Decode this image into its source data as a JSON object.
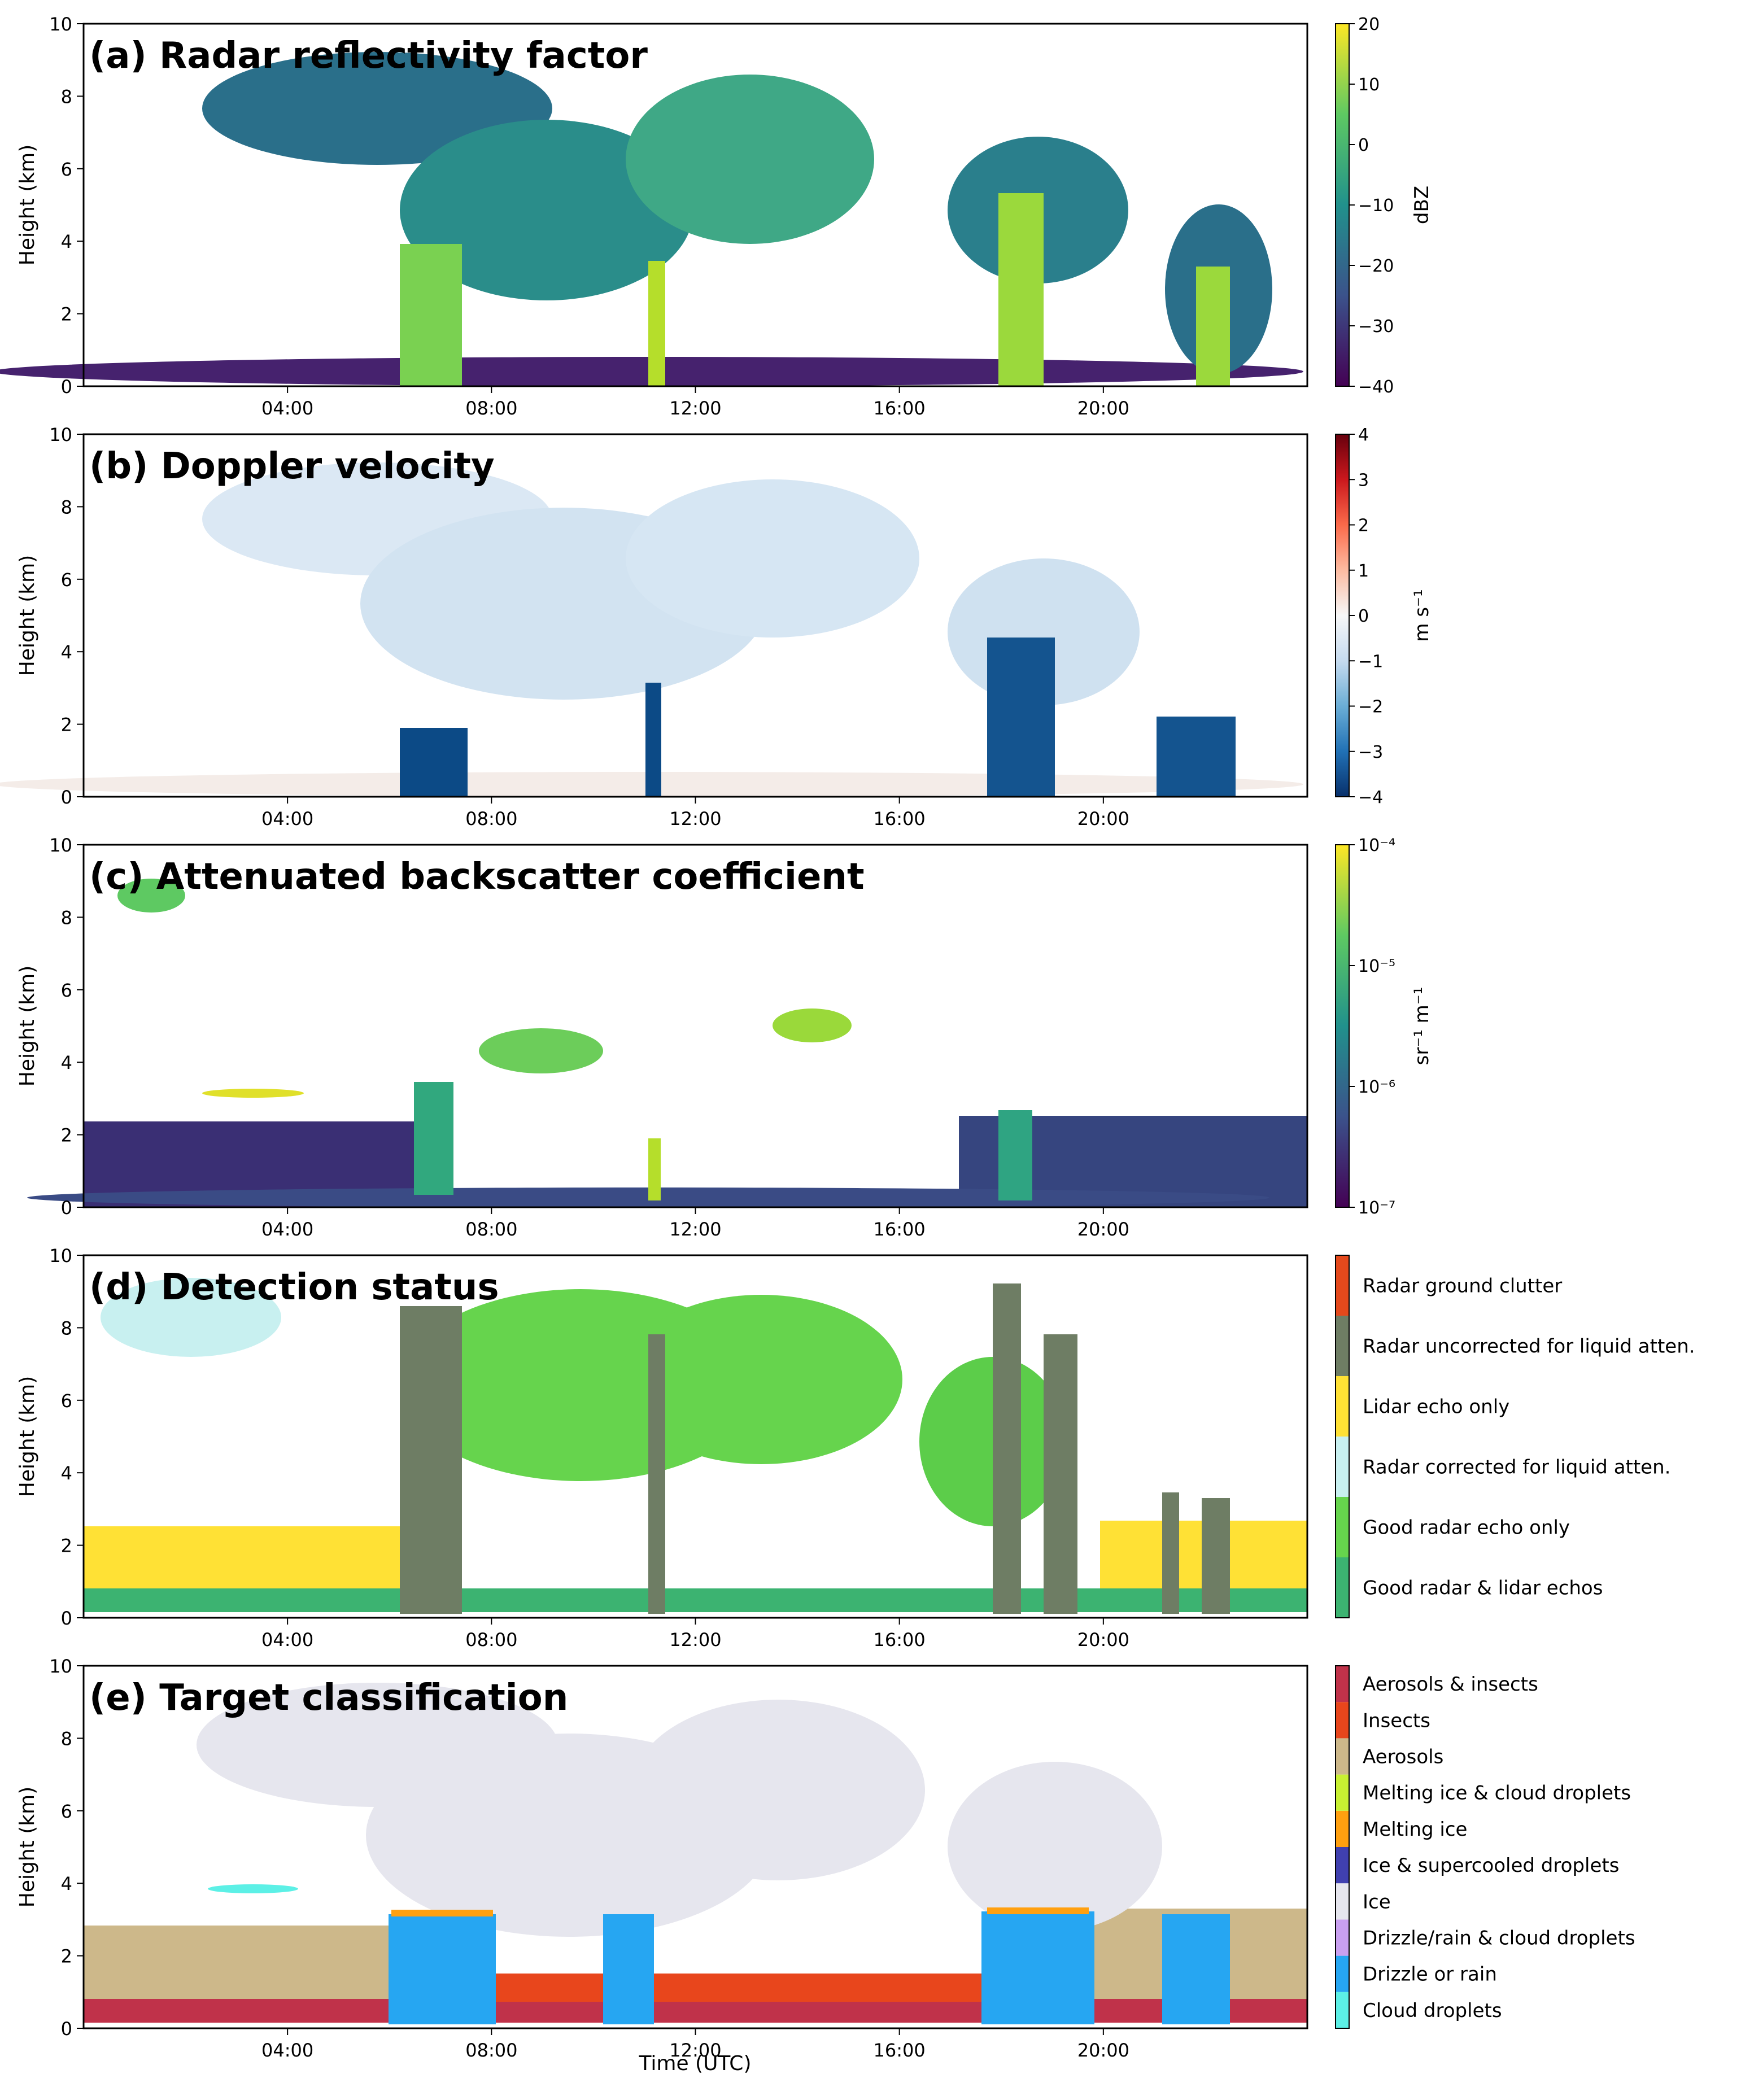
{
  "chart_data": {
    "type": "heatmap",
    "x_axis": {
      "label": "Time (UTC)",
      "range_hours": [
        0,
        24
      ],
      "ticks": [
        {
          "hour": 4,
          "label": "04:00"
        },
        {
          "hour": 8,
          "label": "08:00"
        },
        {
          "hour": 12,
          "label": "12:00"
        },
        {
          "hour": 16,
          "label": "16:00"
        },
        {
          "hour": 20,
          "label": "20:00"
        }
      ]
    },
    "y_axis": {
      "label": "Height (km)",
      "range_km": [
        0,
        10
      ],
      "ticks": [
        {
          "value": 0,
          "label": "0"
        },
        {
          "value": 2,
          "label": "2"
        },
        {
          "value": 4,
          "label": "4"
        },
        {
          "value": 6,
          "label": "6"
        },
        {
          "value": 8,
          "label": "8"
        },
        {
          "value": 10,
          "label": "10"
        }
      ]
    },
    "panels": [
      {
        "id": "a",
        "title": "(a) Radar reflectivity factor",
        "colorbar": {
          "kind": "continuous",
          "label": "dBZ",
          "range": [
            -40,
            20
          ],
          "colors": [
            "#440154",
            "#3b528b",
            "#21918c",
            "#5ec962",
            "#fde725"
          ],
          "ticks": [
            {
              "value": -40,
              "label": "−40"
            },
            {
              "value": -30,
              "label": "−30"
            },
            {
              "value": -20,
              "label": "−20"
            },
            {
              "value": -10,
              "label": "−10"
            },
            {
              "value": 0,
              "label": "0"
            },
            {
              "value": 10,
              "label": "10"
            },
            {
              "value": 20,
              "label": "20"
            }
          ]
        }
      },
      {
        "id": "b",
        "title": "(b) Doppler velocity",
        "colorbar": {
          "kind": "continuous",
          "label": "m s⁻¹",
          "range": [
            -4,
            4
          ],
          "colors": [
            "#08306b",
            "#2171b5",
            "#6baed6",
            "#c6dbef",
            "#f7f7f7",
            "#fcbba1",
            "#fb6a4a",
            "#cb181d",
            "#67000d"
          ],
          "ticks": [
            {
              "value": -4,
              "label": "−4"
            },
            {
              "value": -3,
              "label": "−3"
            },
            {
              "value": -2,
              "label": "−2"
            },
            {
              "value": -1,
              "label": "−1"
            },
            {
              "value": 0,
              "label": "0"
            },
            {
              "value": 1,
              "label": "1"
            },
            {
              "value": 2,
              "label": "2"
            },
            {
              "value": 3,
              "label": "3"
            },
            {
              "value": 4,
              "label": "4"
            }
          ]
        }
      },
      {
        "id": "c",
        "title": "(c) Attenuated backscatter coefficient",
        "colorbar": {
          "kind": "continuous",
          "label": "sr⁻¹ m⁻¹",
          "range": [
            -7,
            -4
          ],
          "colors": [
            "#440154",
            "#3b528b",
            "#21918c",
            "#5ec962",
            "#fde725"
          ],
          "ticks": [
            {
              "value": -7,
              "label": "10⁻⁷"
            },
            {
              "value": -6,
              "label": "10⁻⁶"
            },
            {
              "value": -5,
              "label": "10⁻⁵"
            },
            {
              "value": -4,
              "label": "10⁻⁴"
            }
          ]
        }
      },
      {
        "id": "d",
        "title": "(d) Detection status",
        "colorbar": {
          "kind": "categorical",
          "categories": [
            {
              "label": "Good radar & lidar echos",
              "color": "#3cb371"
            },
            {
              "label": "Good radar echo only",
              "color": "#66d44d"
            },
            {
              "label": "Radar corrected for liquid atten.",
              "color": "#c8f0f0"
            },
            {
              "label": "Lidar echo only",
              "color": "#ffe135"
            },
            {
              "label": "Radar uncorrected for liquid atten.",
              "color": "#6e7d64"
            },
            {
              "label": "Radar ground clutter",
              "color": "#e4491c"
            }
          ]
        }
      },
      {
        "id": "e",
        "title": "(e) Target classification",
        "colorbar": {
          "kind": "categorical",
          "categories": [
            {
              "label": "Cloud droplets",
              "color": "#5cf0e6"
            },
            {
              "label": "Drizzle or rain",
              "color": "#26a6f2"
            },
            {
              "label": "Drizzle/rain & cloud droplets",
              "color": "#c9a0f0"
            },
            {
              "label": "Ice",
              "color": "#e6e6ee"
            },
            {
              "label": "Ice & supercooled droplets",
              "color": "#4040b0"
            },
            {
              "label": "Melting ice",
              "color": "#ffa010"
            },
            {
              "label": "Melting ice & cloud droplets",
              "color": "#c8f032"
            },
            {
              "label": "Aerosols",
              "color": "#cdb88a"
            },
            {
              "label": "Insects",
              "color": "#e8461c"
            },
            {
              "label": "Aerosols & insects",
              "color": "#c0324a"
            }
          ]
        }
      }
    ]
  }
}
